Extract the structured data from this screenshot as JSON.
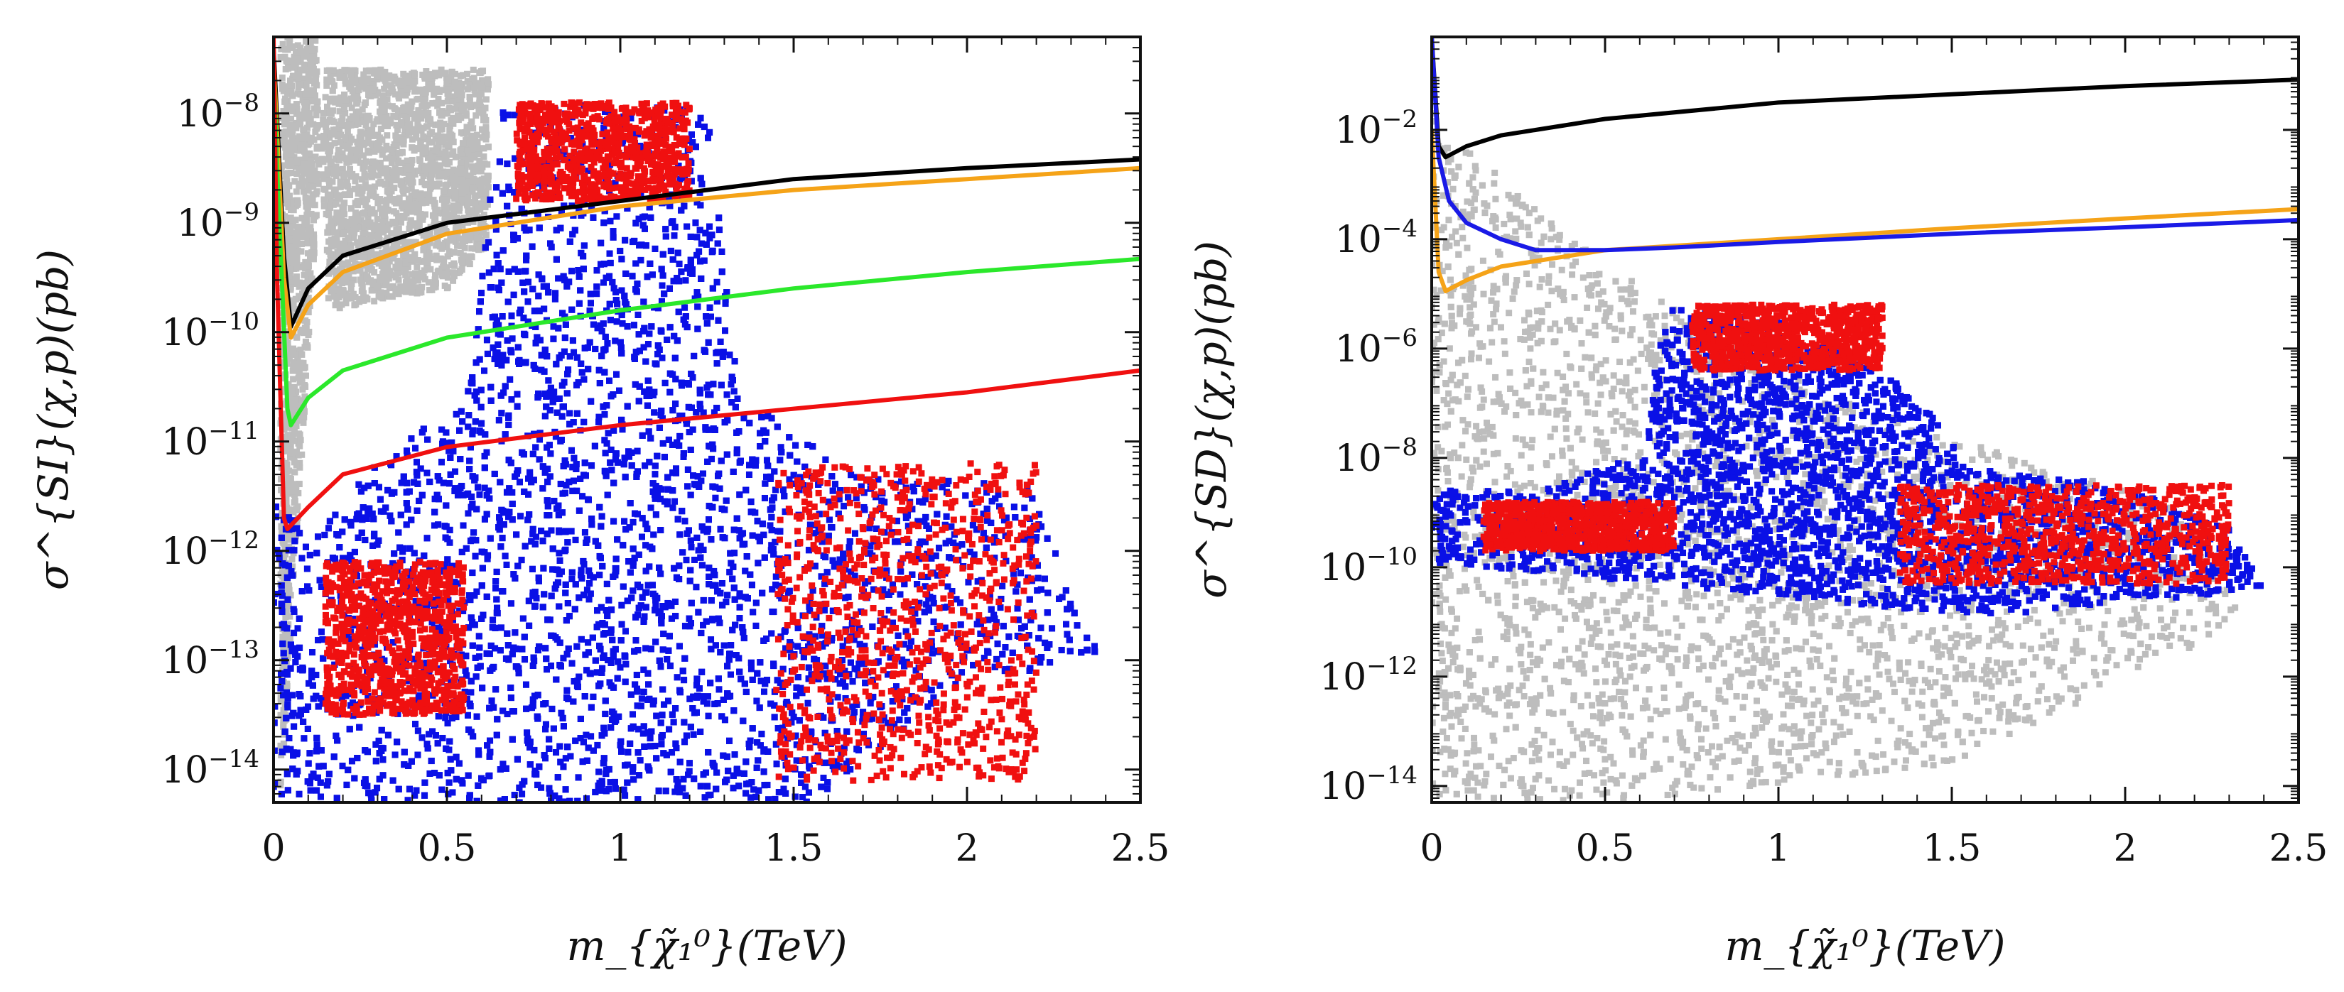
{
  "chart_data": [
    {
      "type": "scatter",
      "panel": "left",
      "xlabel": "m_{χ̃₁⁰}(TeV)",
      "ylabel": "σ^{SI}(χ,p)(pb)",
      "xlim": [
        0,
        2.5
      ],
      "ylim_log10": [
        -14.3,
        -7.3
      ],
      "yscale": "log",
      "x_ticks": [
        "0",
        "0.5",
        "1",
        "1.5",
        "2",
        "2.5"
      ],
      "x_tick_values": [
        0,
        0.5,
        1,
        1.5,
        2,
        2.5
      ],
      "y_tick_exponents": [
        -8,
        -9,
        -10,
        -11,
        -12,
        -13,
        -14
      ],
      "grid": false,
      "colors": {
        "gray": "#bdbdbd",
        "blue": "#0a10e6",
        "red": "#f01010"
      },
      "regions": [
        {
          "color": "gray",
          "points": [
            [
              0.02,
              -7.3
            ],
            [
              0.12,
              -7.3
            ],
            [
              0.16,
              -9.8
            ],
            [
              0.5,
              -9.6
            ],
            [
              0.62,
              -9.2
            ],
            [
              0.62,
              -7.6
            ],
            [
              0.15,
              -7.6
            ],
            [
              0.02,
              -14.3
            ]
          ]
        },
        {
          "color": "blue",
          "points": [
            [
              0.0,
              -14.3
            ],
            [
              0.0,
              -11.5
            ],
            [
              0.1,
              -11.9
            ],
            [
              0.3,
              -11.2
            ],
            [
              0.55,
              -10.6
            ],
            [
              0.6,
              -9.4
            ],
            [
              0.65,
              -7.9
            ],
            [
              1.25,
              -7.95
            ],
            [
              1.3,
              -9.4
            ],
            [
              1.35,
              -10.6
            ],
            [
              1.5,
              -10.9
            ],
            [
              1.7,
              -11.3
            ],
            [
              2.2,
              -11.4
            ],
            [
              2.3,
              -12.5
            ],
            [
              2.4,
              -12.9
            ],
            [
              1.95,
              -13.3
            ],
            [
              1.55,
              -14.3
            ]
          ]
        }
      ],
      "red_points_summary": [
        {
          "x_range": [
            0.15,
            0.55
          ],
          "log10y_range": [
            -13.5,
            -12.1
          ]
        },
        {
          "x_range": [
            0.7,
            1.2
          ],
          "log10y_range": [
            -8.8,
            -7.9
          ]
        },
        {
          "x_range": [
            1.45,
            2.2
          ],
          "log10y_range": [
            -14.1,
            -11.2
          ]
        }
      ],
      "series": [
        {
          "color": "#000000",
          "x": [
            0.0,
            0.03,
            0.05,
            0.1,
            0.2,
            0.5,
            1.0,
            1.5,
            2.0,
            2.5
          ],
          "log10y": [
            -7.4,
            -9.3,
            -9.95,
            -9.6,
            -9.3,
            -9.0,
            -8.8,
            -8.6,
            -8.5,
            -8.42
          ]
        },
        {
          "color": "#f5a318",
          "x": [
            0.0,
            0.03,
            0.05,
            0.1,
            0.2,
            0.5,
            1.0,
            1.5,
            2.0,
            2.5
          ],
          "log10y": [
            -7.5,
            -9.5,
            -10.05,
            -9.75,
            -9.45,
            -9.1,
            -8.85,
            -8.7,
            -8.6,
            -8.5
          ]
        },
        {
          "color": "#2be82b",
          "x": [
            0.0,
            0.01,
            0.04,
            0.05,
            0.1,
            0.2,
            0.5,
            1.0,
            1.5,
            2.0,
            2.5
          ],
          "log10y": [
            -7.5,
            -8.5,
            -10.7,
            -10.85,
            -10.6,
            -10.35,
            -10.05,
            -9.8,
            -9.6,
            -9.45,
            -9.33
          ]
        },
        {
          "color": "#f01010",
          "x": [
            0.0,
            0.01,
            0.03,
            0.04,
            0.1,
            0.2,
            0.5,
            1.0,
            1.5,
            2.0,
            2.5
          ],
          "log10y": [
            -7.3,
            -9.5,
            -11.7,
            -11.8,
            -11.6,
            -11.3,
            -11.05,
            -10.85,
            -10.7,
            -10.55,
            -10.35
          ]
        }
      ]
    },
    {
      "type": "scatter",
      "panel": "right",
      "xlabel": "m_{χ̃₁⁰}(TeV)",
      "ylabel": "σ^{SD}(χ,p)(pb)",
      "xlim": [
        0,
        2.5
      ],
      "ylim_log10": [
        -14.3,
        -0.3
      ],
      "yscale": "log",
      "x_ticks": [
        "0",
        "0.5",
        "1",
        "1.5",
        "2",
        "2.5"
      ],
      "x_tick_values": [
        0,
        0.5,
        1,
        1.5,
        2,
        2.5
      ],
      "y_tick_exponents": [
        -2,
        -4,
        -6,
        -8,
        -10,
        -12,
        -14
      ],
      "grid": false,
      "colors": {
        "gray": "#bdbdbd",
        "blue": "#0a10e6",
        "red": "#f01010"
      },
      "regions": [
        {
          "color": "gray",
          "points": [
            [
              0.0,
              -1.5
            ],
            [
              0.05,
              -2.0
            ],
            [
              0.4,
              -4.0
            ],
            [
              0.7,
              -5.3
            ],
            [
              1.2,
              -7.0
            ],
            [
              2.2,
              -9.0
            ],
            [
              2.35,
              -11.0
            ],
            [
              1.5,
              -13.6
            ],
            [
              0.5,
              -14.3
            ],
            [
              0.0,
              -14.3
            ]
          ]
        },
        {
          "color": "blue",
          "points": [
            [
              0.0,
              -8.6
            ],
            [
              0.3,
              -8.6
            ],
            [
              0.62,
              -7.9
            ],
            [
              0.65,
              -6.0
            ],
            [
              0.7,
              -5.2
            ],
            [
              1.0,
              -5.5
            ],
            [
              1.4,
              -6.8
            ],
            [
              1.55,
              -8.2
            ],
            [
              2.0,
              -8.5
            ],
            [
              2.3,
              -9.3
            ],
            [
              2.4,
              -10.4
            ],
            [
              1.6,
              -10.9
            ],
            [
              0.0,
              -9.9
            ]
          ]
        }
      ],
      "red_points_summary": [
        {
          "x_range": [
            0.75,
            1.3
          ],
          "log10y_range": [
            -6.4,
            -5.2
          ]
        },
        {
          "x_range": [
            0.15,
            0.7
          ],
          "log10y_range": [
            -9.7,
            -8.8
          ]
        },
        {
          "x_range": [
            1.35,
            2.3
          ],
          "log10y_range": [
            -10.3,
            -8.5
          ]
        }
      ],
      "series": [
        {
          "color": "#000000",
          "x": [
            0.0,
            0.02,
            0.04,
            0.1,
            0.2,
            0.5,
            1.0,
            1.5,
            2.0,
            2.5
          ],
          "log10y": [
            -0.3,
            -2.3,
            -2.5,
            -2.3,
            -2.1,
            -1.8,
            -1.5,
            -1.35,
            -1.2,
            -1.08
          ]
        },
        {
          "color": "#f5a318",
          "x": [
            0.0,
            0.02,
            0.04,
            0.1,
            0.2,
            0.5,
            1.0,
            1.5,
            2.0,
            2.5
          ],
          "log10y": [
            -2.0,
            -4.6,
            -4.95,
            -4.75,
            -4.5,
            -4.2,
            -4.0,
            -3.8,
            -3.62,
            -3.45
          ]
        },
        {
          "color": "#1a1ae6",
          "x": [
            0.0,
            0.02,
            0.05,
            0.1,
            0.2,
            0.3,
            0.5,
            0.7,
            1.0,
            1.5,
            2.0,
            2.5
          ],
          "log10y": [
            -0.3,
            -2.5,
            -3.3,
            -3.7,
            -4.0,
            -4.2,
            -4.2,
            -4.15,
            -4.05,
            -3.9,
            -3.78,
            -3.65
          ]
        }
      ]
    }
  ]
}
